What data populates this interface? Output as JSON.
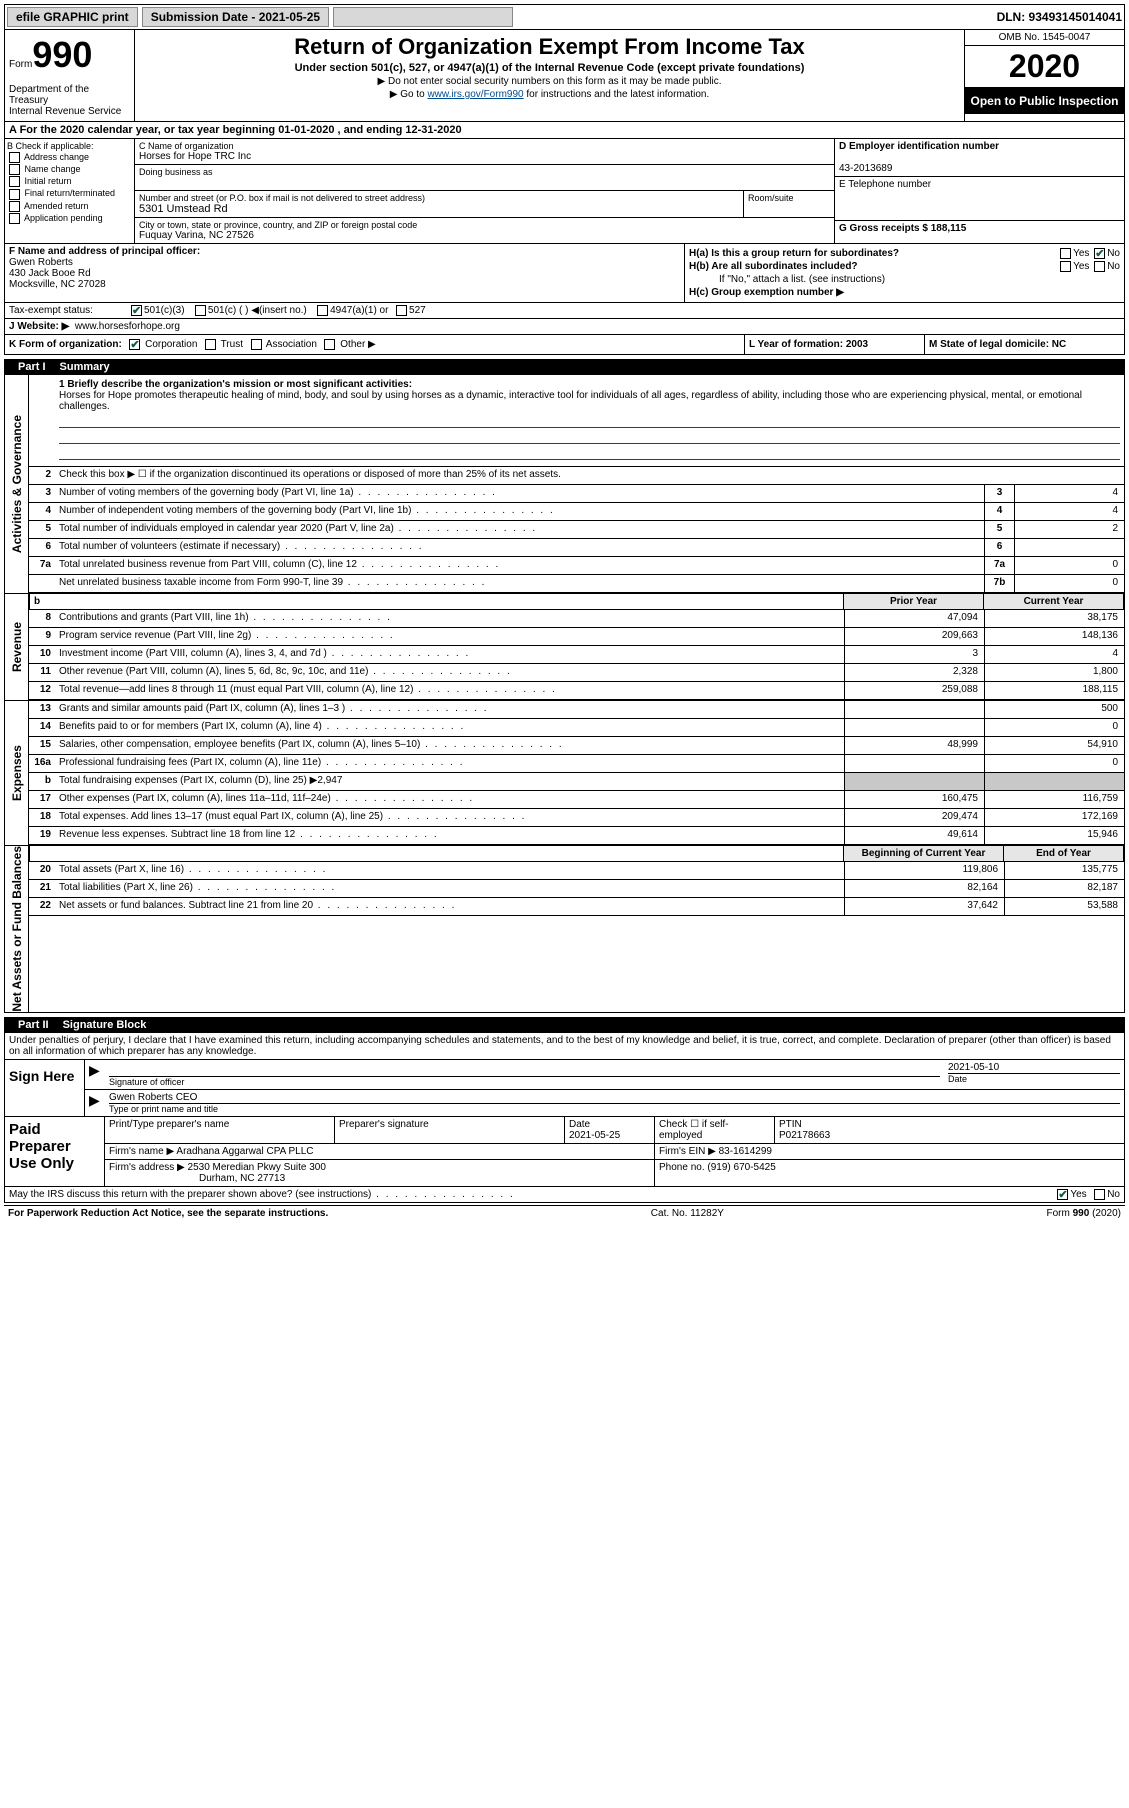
{
  "topbar": {
    "efile_label": "efile GRAPHIC print",
    "submission_label": "Submission Date - 2021-05-25",
    "dln_label": "DLN: 93493145014041"
  },
  "header": {
    "form_prefix": "Form",
    "form_number": "990",
    "dept": "Department of the Treasury\nInternal Revenue Service",
    "title": "Return of Organization Exempt From Income Tax",
    "subtitle": "Under section 501(c), 527, or 4947(a)(1) of the Internal Revenue Code (except private foundations)",
    "warn": "▶ Do not enter social security numbers on this form as it may be made public.",
    "goto": "▶ Go to ",
    "goto_link": "www.irs.gov/Form990",
    "goto_suffix": " for instructions and the latest information.",
    "omb": "OMB No. 1545-0047",
    "year": "2020",
    "inspect": "Open to Public Inspection"
  },
  "period": "A For the 2020 calendar year, or tax year beginning 01-01-2020    , and ending 12-31-2020",
  "boxB": {
    "label": "B Check if applicable:",
    "items": [
      "Address change",
      "Name change",
      "Initial return",
      "Final return/terminated",
      "Amended return",
      "Application pending"
    ]
  },
  "boxC": {
    "name_label": "C Name of organization",
    "name": "Horses for Hope TRC Inc",
    "dba_label": "Doing business as",
    "addr_label": "Number and street (or P.O. box if mail is not delivered to street address)",
    "room_label": "Room/suite",
    "addr": "5301 Umstead Rd",
    "city_label": "City or town, state or province, country, and ZIP or foreign postal code",
    "city": "Fuquay Varina, NC  27526"
  },
  "boxD": {
    "label": "D Employer identification number",
    "value": "43-2013689"
  },
  "boxE": {
    "label": "E Telephone number",
    "value": ""
  },
  "boxG": {
    "label": "G Gross receipts $ 188,115"
  },
  "boxF": {
    "label": "F  Name and address of principal officer:",
    "name": "Gwen Roberts",
    "addr1": "430 Jack Booe Rd",
    "addr2": "Mocksville, NC  27028"
  },
  "boxH": {
    "a": "H(a)  Is this a group return for subordinates?",
    "a_yes": "Yes",
    "a_no": "No",
    "b": "H(b)  Are all subordinates included?",
    "b_yes": "Yes",
    "b_no": "No",
    "b_note": "If \"No,\" attach a list. (see instructions)",
    "c": "H(c)  Group exemption number ▶"
  },
  "taxExempt": {
    "label": "Tax-exempt status:",
    "c3": "501(c)(3)",
    "c": "501(c) (  ) ◀(insert no.)",
    "a1": "4947(a)(1) or",
    "s527": "527"
  },
  "boxJ": {
    "label": "J  Website: ▶",
    "value": "www.horsesforhope.org"
  },
  "boxK": {
    "label": "K Form of organization:",
    "corp": "Corporation",
    "trust": "Trust",
    "assoc": "Association",
    "other": "Other ▶"
  },
  "boxL": {
    "label": "L Year of formation: 2003"
  },
  "boxM": {
    "label": "M State of legal domicile: NC"
  },
  "parts": {
    "p1": "Part I",
    "p1_title": "Summary",
    "p2": "Part II",
    "p2_title": "Signature Block"
  },
  "vtabs": {
    "gov": "Activities & Governance",
    "rev": "Revenue",
    "exp": "Expenses",
    "net": "Net Assets or Fund Balances"
  },
  "summary": {
    "l1_label": "1  Briefly describe the organization's mission or most significant activities:",
    "l1_text": "Horses for Hope promotes therapeutic healing of mind, body, and soul by using horses as a dynamic, interactive tool for individuals of all ages, regardless of ability, including those who are experiencing physical, mental, or emotional challenges.",
    "l2": "Check this box ▶ ☐  if the organization discontinued its operations or disposed of more than 25% of its net assets.",
    "lines": [
      {
        "n": "3",
        "label": "Number of voting members of the governing body (Part VI, line 1a)",
        "box": "3",
        "val": "4"
      },
      {
        "n": "4",
        "label": "Number of independent voting members of the governing body (Part VI, line 1b)",
        "box": "4",
        "val": "4"
      },
      {
        "n": "5",
        "label": "Total number of individuals employed in calendar year 2020 (Part V, line 2a)",
        "box": "5",
        "val": "2"
      },
      {
        "n": "6",
        "label": "Total number of volunteers (estimate if necessary)",
        "box": "6",
        "val": ""
      },
      {
        "n": "7a",
        "label": "Total unrelated business revenue from Part VIII, column (C), line 12",
        "box": "7a",
        "val": "0"
      },
      {
        "n": "",
        "label": "Net unrelated business taxable income from Form 990-T, line 39",
        "box": "7b",
        "val": "0"
      }
    ],
    "twocol_hdr": {
      "prior": "Prior Year",
      "current": "Current Year"
    },
    "revenue": [
      {
        "n": "8",
        "label": "Contributions and grants (Part VIII, line 1h)",
        "prior": "47,094",
        "current": "38,175"
      },
      {
        "n": "9",
        "label": "Program service revenue (Part VIII, line 2g)",
        "prior": "209,663",
        "current": "148,136"
      },
      {
        "n": "10",
        "label": "Investment income (Part VIII, column (A), lines 3, 4, and 7d )",
        "prior": "3",
        "current": "4"
      },
      {
        "n": "11",
        "label": "Other revenue (Part VIII, column (A), lines 5, 6d, 8c, 9c, 10c, and 11e)",
        "prior": "2,328",
        "current": "1,800"
      },
      {
        "n": "12",
        "label": "Total revenue—add lines 8 through 11 (must equal Part VIII, column (A), line 12)",
        "prior": "259,088",
        "current": "188,115"
      }
    ],
    "expenses": [
      {
        "n": "13",
        "label": "Grants and similar amounts paid (Part IX, column (A), lines 1–3 )",
        "prior": "",
        "current": "500"
      },
      {
        "n": "14",
        "label": "Benefits paid to or for members (Part IX, column (A), line 4)",
        "prior": "",
        "current": "0"
      },
      {
        "n": "15",
        "label": "Salaries, other compensation, employee benefits (Part IX, column (A), lines 5–10)",
        "prior": "48,999",
        "current": "54,910"
      },
      {
        "n": "16a",
        "label": "Professional fundraising fees (Part IX, column (A), line 11e)",
        "prior": "",
        "current": "0"
      },
      {
        "n": "b",
        "label": "Total fundraising expenses (Part IX, column (D), line 25) ▶2,947",
        "prior": "shaded",
        "current": "shaded"
      },
      {
        "n": "17",
        "label": "Other expenses (Part IX, column (A), lines 11a–11d, 11f–24e)",
        "prior": "160,475",
        "current": "116,759"
      },
      {
        "n": "18",
        "label": "Total expenses. Add lines 13–17 (must equal Part IX, column (A), line 25)",
        "prior": "209,474",
        "current": "172,169"
      },
      {
        "n": "19",
        "label": "Revenue less expenses. Subtract line 18 from line 12",
        "prior": "49,614",
        "current": "15,946"
      }
    ],
    "net_hdr": {
      "begin": "Beginning of Current Year",
      "end": "End of Year"
    },
    "net": [
      {
        "n": "20",
        "label": "Total assets (Part X, line 16)",
        "prior": "119,806",
        "current": "135,775"
      },
      {
        "n": "21",
        "label": "Total liabilities (Part X, line 26)",
        "prior": "82,164",
        "current": "82,187"
      },
      {
        "n": "22",
        "label": "Net assets or fund balances. Subtract line 21 from line 20",
        "prior": "37,642",
        "current": "53,588"
      }
    ]
  },
  "sig": {
    "decl": "Under penalties of perjury, I declare that I have examined this return, including accompanying schedules and statements, and to the best of my knowledge and belief, it is true, correct, and complete. Declaration of preparer (other than officer) is based on all information of which preparer has any knowledge.",
    "sign_here": "Sign Here",
    "sig_of_officer": "Signature of officer",
    "date_label": "Date",
    "date": "2021-05-10",
    "name_title": "Gwen Roberts  CEO",
    "type_label": "Type or print name and title"
  },
  "prep": {
    "label": "Paid Preparer Use Only",
    "print_name": "Print/Type preparer's name",
    "sig": "Preparer's signature",
    "date_label": "Date",
    "date": "2021-05-25",
    "check": "Check ☐ if self-employed",
    "ptin_label": "PTIN",
    "ptin": "P02178663",
    "firm_label": "Firm's name     ▶",
    "firm": "Aradhana Aggarwal CPA PLLC",
    "ein_label": "Firm's EIN ▶",
    "ein": "83-1614299",
    "addr_label": "Firm's address ▶",
    "addr1": "2530 Meredian Pkwy Suite 300",
    "addr2": "Durham, NC  27713",
    "phone_label": "Phone no.",
    "phone": "(919) 670-5425",
    "discuss": "May the IRS discuss this return with the preparer shown above? (see instructions)",
    "yes": "Yes",
    "no": "No"
  },
  "footer": {
    "left": "For Paperwork Reduction Act Notice, see the separate instructions.",
    "mid": "Cat. No. 11282Y",
    "right": "Form 990 (2020)"
  }
}
